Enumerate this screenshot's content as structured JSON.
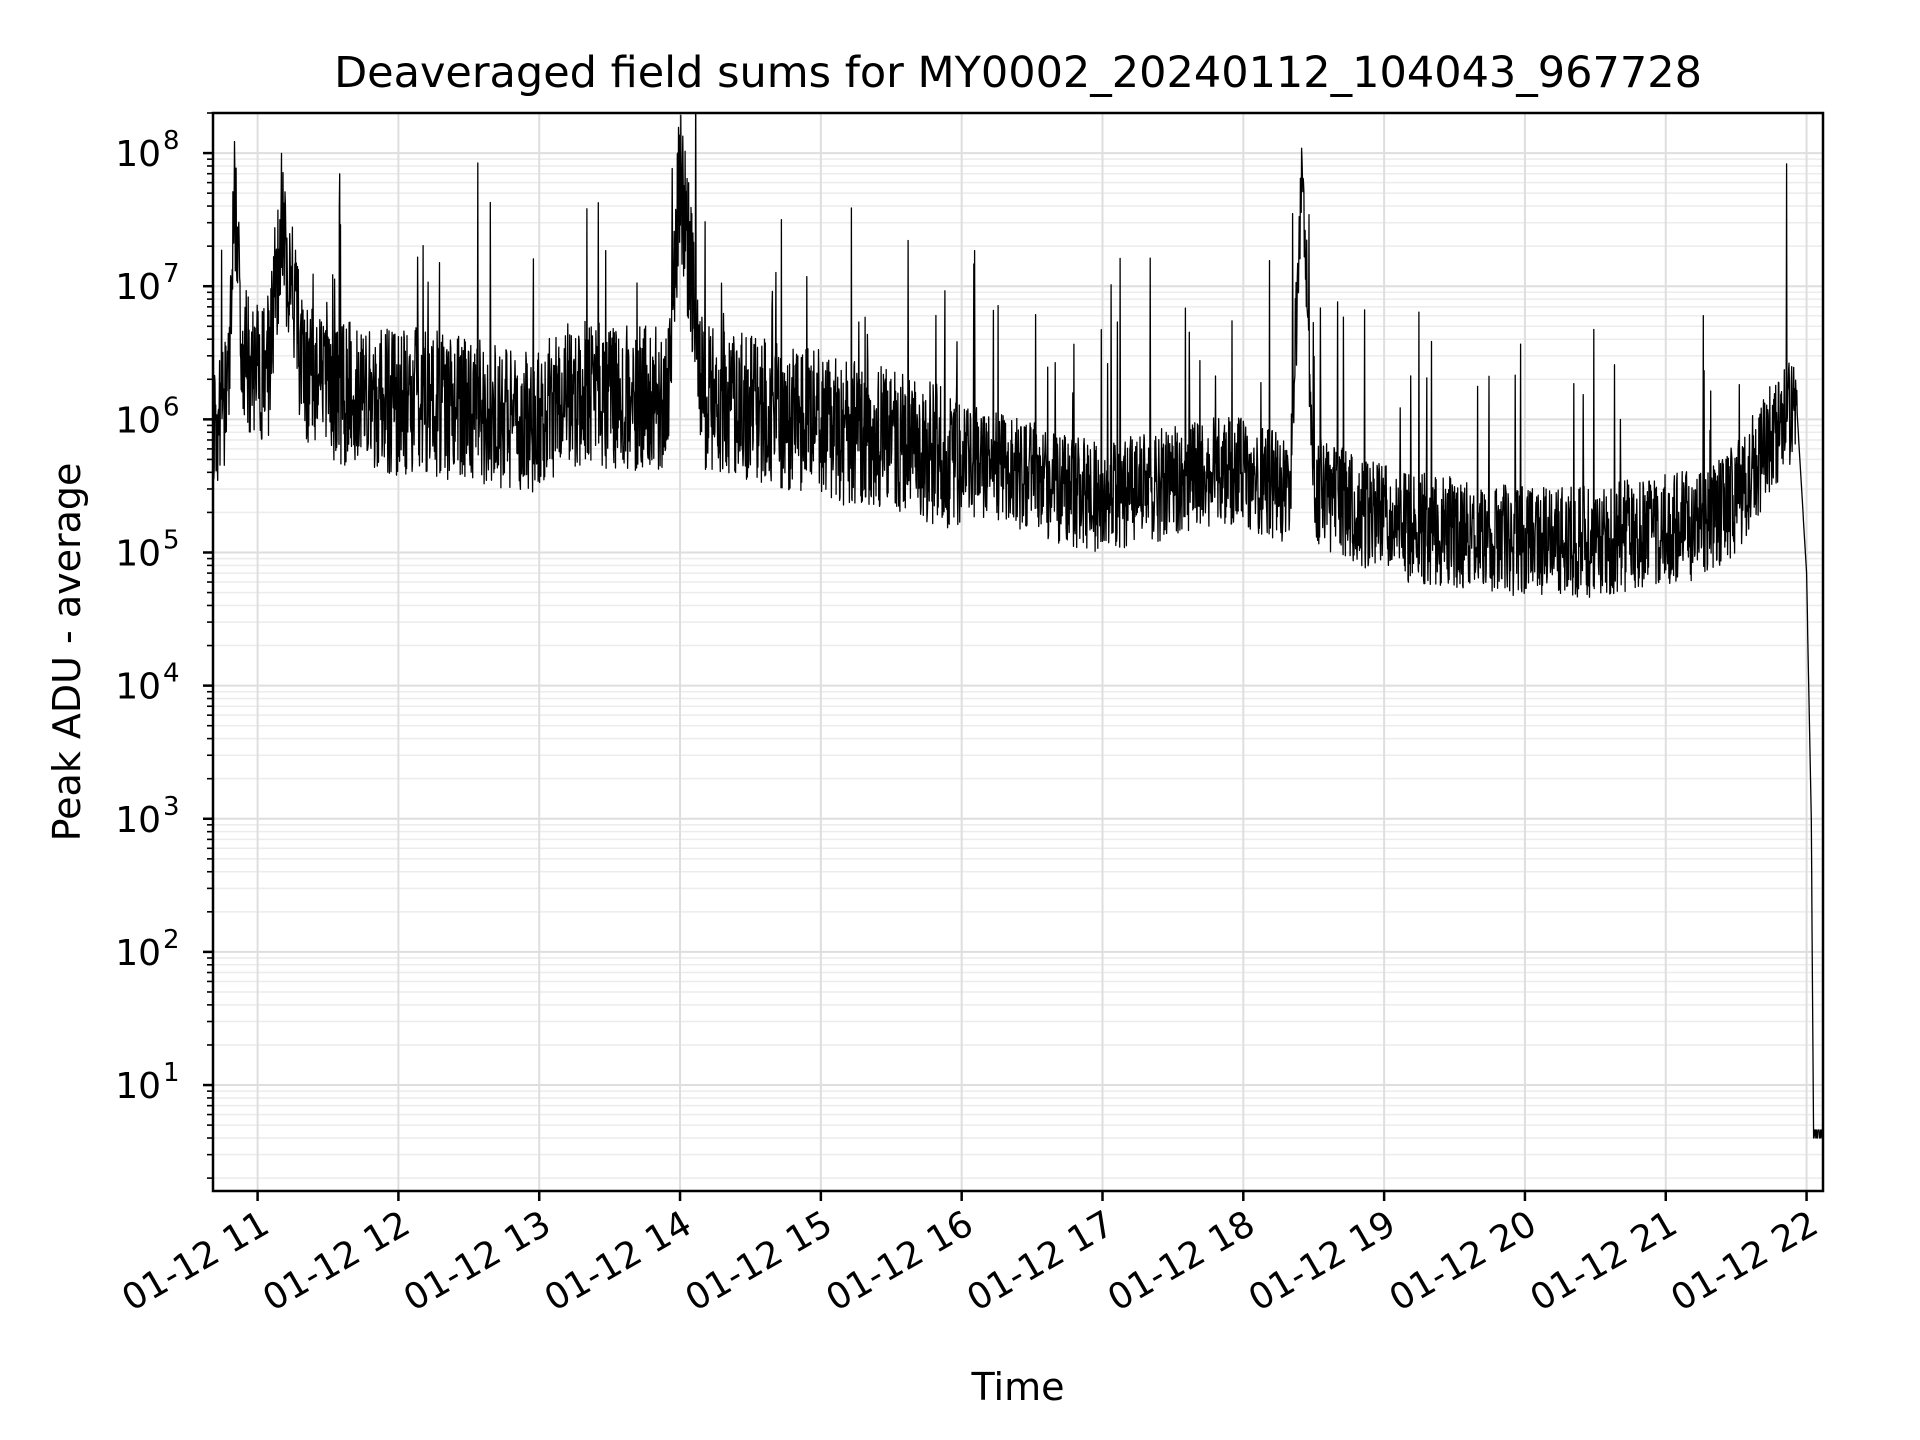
{
  "chart_data": {
    "type": "line",
    "title": "Deaveraged field sums for MY0002_20240112_104043_967728",
    "xlabel": "Time",
    "ylabel": "Peak ADU - average",
    "xscale": "time",
    "yscale": "log",
    "xlim": [
      "01-12 10:41",
      "01-12 22:07"
    ],
    "ylim": [
      1.6,
      200000000.0
    ],
    "grid": true,
    "x_ticks": [
      "01-12 11",
      "01-12 12",
      "01-12 13",
      "01-12 14",
      "01-12 15",
      "01-12 16",
      "01-12 17",
      "01-12 18",
      "01-12 19",
      "01-12 20",
      "01-12 21",
      "01-12 22"
    ],
    "y_ticks": [
      {
        "base": "10",
        "exp": "1",
        "value": 10
      },
      {
        "base": "10",
        "exp": "2",
        "value": 100
      },
      {
        "base": "10",
        "exp": "3",
        "value": 1000
      },
      {
        "base": "10",
        "exp": "4",
        "value": 10000
      },
      {
        "base": "10",
        "exp": "5",
        "value": 100000
      },
      {
        "base": "10",
        "exp": "6",
        "value": 1000000
      },
      {
        "base": "10",
        "exp": "7",
        "value": 10000000
      },
      {
        "base": "10",
        "exp": "8",
        "value": 100000000
      }
    ],
    "series": [
      {
        "color": "#000000",
        "x": [
          "01-12 10:41",
          "01-12 10:48",
          "01-12 10:50",
          "01-12 10:54",
          "01-12 10:58",
          "01-12 11:05",
          "01-12 11:10",
          "01-12 11:20",
          "01-12 11:30",
          "01-12 11:40",
          "01-12 11:50",
          "01-12 12:00",
          "01-12 12:10",
          "01-12 12:20",
          "01-12 12:30",
          "01-12 12:40",
          "01-12 12:50",
          "01-12 13:00",
          "01-12 13:10",
          "01-12 13:20",
          "01-12 13:30",
          "01-12 13:40",
          "01-12 13:55",
          "01-12 14:00",
          "01-12 14:10",
          "01-12 14:20",
          "01-12 14:30",
          "01-12 14:40",
          "01-12 14:50",
          "01-12 15:00",
          "01-12 15:10",
          "01-12 15:20",
          "01-12 15:30",
          "01-12 15:40",
          "01-12 15:50",
          "01-12 16:00",
          "01-12 16:10",
          "01-12 16:20",
          "01-12 16:30",
          "01-12 16:40",
          "01-12 16:50",
          "01-12 17:00",
          "01-12 17:10",
          "01-12 17:20",
          "01-12 17:30",
          "01-12 17:40",
          "01-12 17:50",
          "01-12 18:00",
          "01-12 18:10",
          "01-12 18:20",
          "01-12 18:25",
          "01-12 18:30",
          "01-12 18:40",
          "01-12 18:50",
          "01-12 19:00",
          "01-12 19:10",
          "01-12 19:20",
          "01-12 19:30",
          "01-12 19:40",
          "01-12 19:50",
          "01-12 20:00",
          "01-12 20:10",
          "01-12 20:20",
          "01-12 20:30",
          "01-12 20:40",
          "01-12 20:50",
          "01-12 21:00",
          "01-12 21:10",
          "01-12 21:20",
          "01-12 21:30",
          "01-12 21:40",
          "01-12 21:50",
          "01-12 21:56",
          "01-12 22:00",
          "01-12 22:02",
          "01-12 22:03",
          "01-12 22:07"
        ],
        "y": [
          1000000,
          1500000,
          40000000,
          3000000,
          2000000,
          2500000,
          30000000,
          2000000,
          1800000,
          1500000,
          1500000,
          1300000,
          1500000,
          1200000,
          1200000,
          1100000,
          1000000,
          1000000,
          1500000,
          1600000,
          1500000,
          1400000,
          1500000,
          70000000,
          1500000,
          1400000,
          1200000,
          1100000,
          1000000,
          1000000,
          800000,
          800000,
          700000,
          600000,
          550000,
          500000,
          450000,
          400000,
          380000,
          300000,
          280000,
          250000,
          280000,
          300000,
          350000,
          400000,
          400000,
          400000,
          350000,
          300000,
          90000000,
          300000,
          250000,
          200000,
          180000,
          150000,
          150000,
          140000,
          130000,
          130000,
          120000,
          120000,
          120000,
          120000,
          130000,
          140000,
          150000,
          160000,
          180000,
          250000,
          500000,
          1000000,
          1100000,
          70000,
          1000,
          4,
          4
        ]
      }
    ]
  }
}
